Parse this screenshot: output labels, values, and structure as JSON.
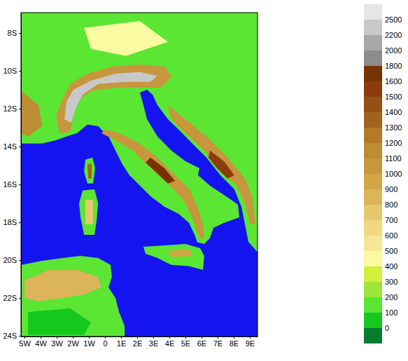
{
  "chart_data": {
    "type": "map",
    "color": "#1414f0",
    "xlim": [
      -5.22,
      9.48
    ],
    "ylim": [
      -6.92,
      -24.03
    ],
    "xticks": [
      {
        "value": -5,
        "label": "5W"
      },
      {
        "value": -4,
        "label": "4W"
      },
      {
        "value": -3,
        "label": "3W"
      },
      {
        "value": -2,
        "label": "2W"
      },
      {
        "value": -1,
        "label": "1W"
      },
      0,
      {
        "value": 1,
        "label": "1E"
      },
      {
        "value": 2,
        "label": "2E"
      },
      {
        "value": 3,
        "label": "3E"
      },
      {
        "value": 4,
        "label": "4E"
      },
      {
        "value": 5,
        "label": "5E"
      },
      {
        "value": 6,
        "label": "6E"
      },
      {
        "value": 7,
        "label": "7E"
      },
      {
        "value": 8,
        "label": "8E"
      },
      {
        "value": 9,
        "label": "9E"
      }
    ],
    "yticks": [
      {
        "value": -8,
        "label": "8S"
      },
      {
        "value": -10,
        "label": "10S"
      },
      {
        "value": -12,
        "label": "12S"
      },
      {
        "value": -14,
        "label": "14S"
      },
      {
        "value": -16,
        "label": "16S"
      },
      {
        "value": -18,
        "label": "18S"
      },
      {
        "value": -20,
        "label": "20S"
      },
      {
        "value": -22,
        "label": "22S"
      },
      {
        "value": -24,
        "label": "24S"
      }
    ],
    "regions": [
      {
        "elevation": 100,
        "outline": [
          [
            -5.22,
            -6.92
          ],
          [
            9.48,
            -6.92
          ],
          [
            9.48,
            -19.58
          ],
          [
            8.91,
            -19.03
          ],
          [
            8.7,
            -18.1
          ],
          [
            8.48,
            -17.18
          ],
          [
            8.04,
            -16.25
          ],
          [
            7.17,
            -15.51
          ],
          [
            6.3,
            -14.58
          ],
          [
            5.43,
            -13.84
          ],
          [
            4.57,
            -13.1
          ],
          [
            3.91,
            -12.55
          ],
          [
            3.26,
            -11.81
          ],
          [
            2.96,
            -11.25
          ],
          [
            2.61,
            -10.99
          ],
          [
            2.17,
            -11.14
          ],
          [
            2.39,
            -11.81
          ],
          [
            2.61,
            -12.55
          ],
          [
            3.26,
            -13.47
          ],
          [
            4.13,
            -14.21
          ],
          [
            5.0,
            -14.77
          ],
          [
            5.87,
            -15.14
          ],
          [
            5.78,
            -15.51
          ],
          [
            6.52,
            -16.06
          ],
          [
            7.39,
            -16.55
          ],
          [
            8.26,
            -17.06
          ],
          [
            8.35,
            -17.73
          ],
          [
            7.39,
            -18.03
          ],
          [
            6.74,
            -18.29
          ],
          [
            6.52,
            -18.84
          ],
          [
            6.17,
            -19.14
          ],
          [
            5.74,
            -19.06
          ],
          [
            5.57,
            -18.66
          ],
          [
            5.22,
            -18.03
          ],
          [
            4.57,
            -17.55
          ],
          [
            3.7,
            -17.18
          ],
          [
            2.83,
            -16.62
          ],
          [
            2.17,
            -16.06
          ],
          [
            1.52,
            -15.51
          ],
          [
            1.09,
            -14.95
          ],
          [
            0.65,
            -14.21
          ],
          [
            0.22,
            -13.47
          ],
          [
            -0.43,
            -12.92
          ],
          [
            -1.09,
            -12.84
          ],
          [
            -1.74,
            -13.29
          ],
          [
            -2.39,
            -13.47
          ],
          [
            -3.04,
            -13.66
          ],
          [
            -3.91,
            -13.84
          ],
          [
            -4.78,
            -13.84
          ],
          [
            -5.22,
            -13.84
          ]
        ]
      },
      {
        "elevation": 100,
        "outline": [
          [
            2.39,
            -19.29
          ],
          [
            3.91,
            -19.21
          ],
          [
            5.0,
            -19.14
          ],
          [
            5.91,
            -19.36
          ],
          [
            6.17,
            -19.77
          ],
          [
            6.09,
            -20.51
          ],
          [
            5.22,
            -20.32
          ],
          [
            4.13,
            -20.25
          ],
          [
            3.26,
            -19.88
          ],
          [
            2.52,
            -19.66
          ]
        ]
      },
      {
        "elevation": 100,
        "outline": [
          [
            -1.39,
            -16.32
          ],
          [
            -0.65,
            -16.25
          ],
          [
            -0.43,
            -16.99
          ],
          [
            -0.52,
            -17.92
          ],
          [
            -0.65,
            -18.66
          ],
          [
            -1.3,
            -18.66
          ],
          [
            -1.52,
            -17.73
          ],
          [
            -1.61,
            -16.99
          ]
        ]
      },
      {
        "elevation": 100,
        "outline": [
          [
            -1.22,
            -14.69
          ],
          [
            -0.78,
            -14.58
          ],
          [
            -0.61,
            -15.14
          ],
          [
            -0.74,
            -15.95
          ],
          [
            -1.09,
            -15.95
          ],
          [
            -1.3,
            -15.32
          ]
        ]
      },
      {
        "elevation": 100,
        "outline": [
          [
            -5.22,
            -20.25
          ],
          [
            -3.91,
            -20.03
          ],
          [
            -2.61,
            -19.88
          ],
          [
            -1.52,
            -19.77
          ],
          [
            -0.43,
            -19.88
          ],
          [
            0.35,
            -20.25
          ],
          [
            0.43,
            -20.88
          ],
          [
            0.22,
            -21.44
          ],
          [
            0.65,
            -21.99
          ],
          [
            0.87,
            -22.73
          ],
          [
            1.22,
            -23.47
          ],
          [
            1.22,
            -24.03
          ],
          [
            -5.22,
            -24.03
          ]
        ]
      },
      {
        "elevation": 0,
        "outline": [
          [
            -4.78,
            -22.73
          ],
          [
            -2.17,
            -22.55
          ],
          [
            -0.87,
            -23.29
          ],
          [
            -1.3,
            -23.95
          ],
          [
            -4.78,
            -23.95
          ]
        ]
      },
      {
        "elevation": 400,
        "outline": [
          [
            -1.3,
            -7.73
          ],
          [
            2.17,
            -7.36
          ],
          [
            3.91,
            -8.47
          ],
          [
            1.3,
            -9.21
          ],
          [
            -0.87,
            -8.84
          ]
        ]
      },
      {
        "elevation": 1100,
        "outline": [
          [
            -5.22,
            -11.06
          ],
          [
            -4.13,
            -11.81
          ],
          [
            -3.91,
            -12.92
          ],
          [
            -4.78,
            -13.47
          ],
          [
            -5.22,
            -13.29
          ]
        ]
      },
      {
        "elevation": 1000,
        "outline": [
          [
            -2.83,
            -13.29
          ],
          [
            -3.04,
            -12.36
          ],
          [
            -2.61,
            -11.44
          ],
          [
            -2.17,
            -10.69
          ],
          [
            -1.09,
            -10.14
          ],
          [
            0.43,
            -9.77
          ],
          [
            2.17,
            -9.66
          ],
          [
            3.7,
            -9.77
          ],
          [
            4.13,
            -10.32
          ],
          [
            3.48,
            -10.88
          ],
          [
            2.17,
            -10.88
          ],
          [
            0.65,
            -10.88
          ],
          [
            -0.87,
            -11.06
          ],
          [
            -1.74,
            -11.62
          ],
          [
            -1.96,
            -12.36
          ],
          [
            -2.17,
            -13.21
          ]
        ]
      },
      {
        "elevation": 2200,
        "outline": [
          [
            -2.52,
            -12.55
          ],
          [
            -2.39,
            -11.62
          ],
          [
            -1.96,
            -10.99
          ],
          [
            -0.87,
            -10.51
          ],
          [
            0.65,
            -10.14
          ],
          [
            2.17,
            -10.06
          ],
          [
            3.26,
            -10.25
          ],
          [
            2.83,
            -10.58
          ],
          [
            1.3,
            -10.58
          ],
          [
            -0.43,
            -10.69
          ],
          [
            -1.39,
            -11.25
          ],
          [
            -1.83,
            -11.99
          ],
          [
            -2.09,
            -12.73
          ]
        ]
      },
      {
        "elevation": 1000,
        "outline": [
          [
            0.0,
            -13.1
          ],
          [
            0.87,
            -13.29
          ],
          [
            2.17,
            -13.84
          ],
          [
            3.26,
            -14.58
          ],
          [
            4.35,
            -15.51
          ],
          [
            5.22,
            -16.25
          ],
          [
            5.65,
            -16.99
          ],
          [
            6.09,
            -18.1
          ],
          [
            6.17,
            -18.84
          ],
          [
            5.87,
            -18.84
          ],
          [
            5.43,
            -17.73
          ],
          [
            4.87,
            -16.81
          ],
          [
            3.91,
            -15.95
          ],
          [
            2.83,
            -15.14
          ],
          [
            1.74,
            -14.21
          ],
          [
            0.65,
            -13.66
          ],
          [
            -0.22,
            -13.29
          ]
        ]
      },
      {
        "elevation": 1600,
        "outline": [
          [
            2.83,
            -14.58
          ],
          [
            3.7,
            -15.14
          ],
          [
            4.35,
            -15.81
          ],
          [
            3.91,
            -15.95
          ],
          [
            3.13,
            -15.32
          ],
          [
            2.52,
            -14.84
          ]
        ]
      },
      {
        "elevation": 1000,
        "outline": [
          [
            3.91,
            -11.81
          ],
          [
            5.0,
            -12.55
          ],
          [
            6.3,
            -13.47
          ],
          [
            7.61,
            -14.58
          ],
          [
            8.7,
            -15.69
          ],
          [
            9.13,
            -16.62
          ],
          [
            9.35,
            -18.1
          ],
          [
            9.04,
            -18.1
          ],
          [
            8.7,
            -16.99
          ],
          [
            8.17,
            -16.06
          ],
          [
            7.04,
            -15.14
          ],
          [
            6.17,
            -14.21
          ],
          [
            5.0,
            -13.29
          ],
          [
            4.13,
            -12.55
          ]
        ]
      },
      {
        "elevation": 1500,
        "outline": [
          [
            6.52,
            -14.21
          ],
          [
            7.39,
            -14.77
          ],
          [
            8.04,
            -15.51
          ],
          [
            7.61,
            -15.69
          ],
          [
            6.96,
            -15.14
          ],
          [
            6.43,
            -14.58
          ]
        ]
      },
      {
        "elevation": 800,
        "outline": [
          [
            -5.0,
            -21.06
          ],
          [
            -3.48,
            -20.51
          ],
          [
            -1.74,
            -20.51
          ],
          [
            -0.43,
            -20.88
          ],
          [
            -0.22,
            -21.44
          ],
          [
            -1.3,
            -21.81
          ],
          [
            -2.61,
            -21.99
          ],
          [
            -4.13,
            -22.18
          ],
          [
            -5.0,
            -21.99
          ]
        ]
      },
      {
        "elevation": 700,
        "outline": [
          [
            -1.22,
            -16.81
          ],
          [
            -0.74,
            -16.81
          ],
          [
            -0.74,
            -18.1
          ],
          [
            -1.22,
            -18.1
          ]
        ]
      },
      {
        "elevation": 1300,
        "outline": [
          [
            -1.09,
            -14.95
          ],
          [
            -0.83,
            -14.88
          ],
          [
            -0.83,
            -15.69
          ],
          [
            -1.04,
            -15.69
          ]
        ]
      },
      {
        "elevation": 900,
        "outline": [
          [
            3.91,
            -19.51
          ],
          [
            5.22,
            -19.4
          ],
          [
            5.43,
            -19.77
          ],
          [
            4.13,
            -19.84
          ]
        ]
      }
    ],
    "colorbar": {
      "levels": [
        0,
        100,
        200,
        300,
        400,
        500,
        600,
        700,
        800,
        900,
        1000,
        1100,
        1200,
        1300,
        1400,
        1500,
        1600,
        1800,
        2000,
        2200,
        2500
      ],
      "colors": [
        "#067d2c",
        "#14c81e",
        "#5ae632",
        "#9ae63c",
        "#d2f03c",
        "#fafaa0",
        "#f5e696",
        "#f0d782",
        "#e6c86e",
        "#dcb45a",
        "#d2a546",
        "#c8963c",
        "#be8c32",
        "#b47828",
        "#a0641e",
        "#965014",
        "#8c3c0a",
        "#783200",
        "#8c8c8c",
        "#a8a8a8",
        "#c8c8c8",
        "#e6e6e6"
      ]
    }
  }
}
